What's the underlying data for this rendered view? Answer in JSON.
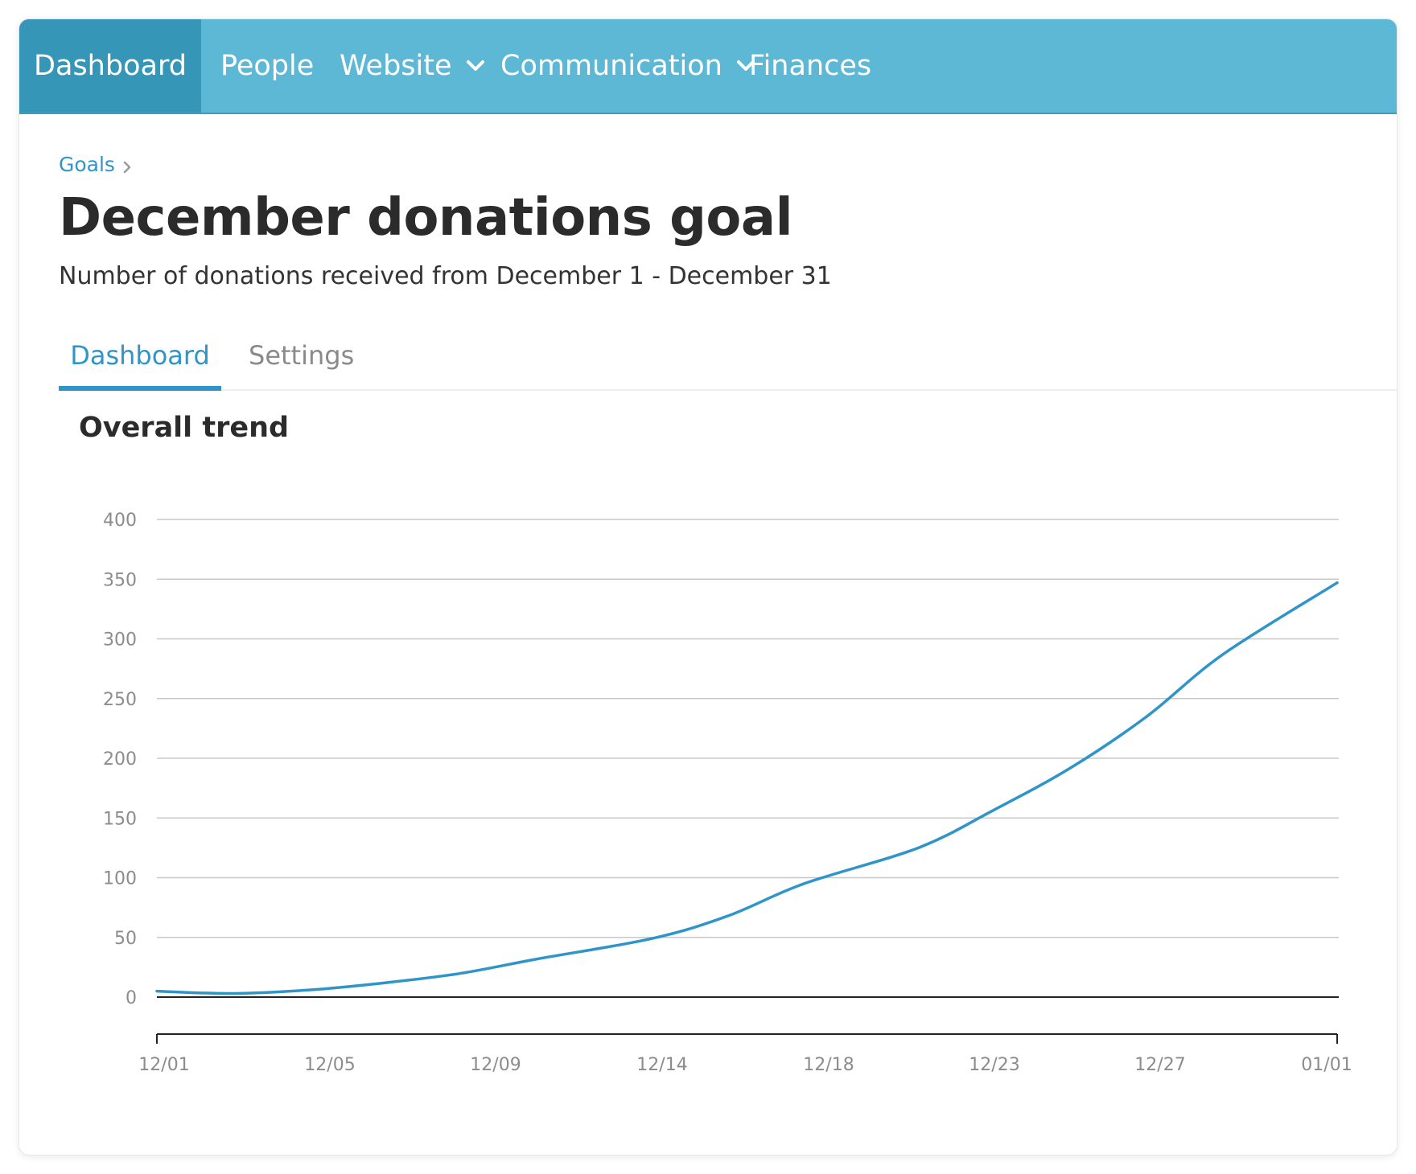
{
  "topnav": {
    "items": [
      {
        "label": "Dashboard",
        "active": true,
        "dropdown": false
      },
      {
        "label": "People",
        "active": false,
        "dropdown": false
      },
      {
        "label": "Website",
        "active": false,
        "dropdown": true
      },
      {
        "label": "Communication",
        "active": false,
        "dropdown": true
      },
      {
        "label": "Finances",
        "active": false,
        "dropdown": false
      }
    ],
    "background_color": "#5db8d6",
    "active_color": "#3696b8"
  },
  "breadcrumb": {
    "items": [
      "Goals"
    ]
  },
  "page": {
    "title": "December donations goal",
    "subtitle": "Number of donations received from December 1 - December 31"
  },
  "tabs": [
    {
      "label": "Dashboard",
      "active": true
    },
    {
      "label": "Settings",
      "active": false
    }
  ],
  "section": {
    "title": "Overall trend"
  },
  "accent_color": "#2f95c9",
  "chart_data": {
    "type": "line",
    "title": "Overall trend",
    "xlabel": "",
    "ylabel": "",
    "x_ticks": [
      "12/01",
      "12/05",
      "12/09",
      "12/14",
      "12/18",
      "12/23",
      "12/27",
      "01/01"
    ],
    "yticks": [
      0,
      50,
      100,
      150,
      200,
      250,
      300,
      350,
      400
    ],
    "ylim": [
      0,
      400
    ],
    "grid": true,
    "line_color": "#2f95c9",
    "series": [
      {
        "x": [
          "12/01",
          "12/03",
          "12/05",
          "12/07",
          "12/09",
          "12/11",
          "12/14",
          "12/16",
          "12/18",
          "12/21",
          "12/23",
          "12/25",
          "12/27",
          "12/29",
          "01/01"
        ],
        "values": [
          5,
          3,
          6,
          12,
          20,
          32,
          49,
          68,
          95,
          125,
          157,
          192,
          235,
          287,
          347
        ]
      }
    ]
  }
}
